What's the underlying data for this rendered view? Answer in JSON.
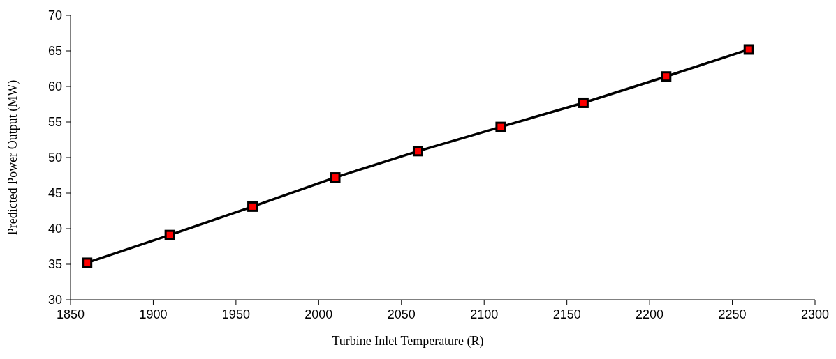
{
  "chart_data": {
    "type": "line",
    "xlabel": "Turbine Inlet Temperature (R)",
    "ylabel": "Predicted Power Output (MW)",
    "x": [
      1860,
      1910,
      1960,
      2010,
      2060,
      2110,
      2160,
      2210,
      2260
    ],
    "series": [
      {
        "color": "#000000",
        "values": [
          35.2,
          39.1,
          43.1,
          47.2,
          50.9,
          54.3,
          57.7,
          61.4,
          65.2
        ]
      }
    ],
    "marker": "square",
    "line_style": "solid",
    "grid": false,
    "xlim": [
      1850,
      2300
    ],
    "xticks": [
      1850,
      1900,
      1950,
      2000,
      2050,
      2100,
      2150,
      2200,
      2250,
      2300
    ],
    "ylim": [
      30,
      70
    ],
    "yticks": [
      30,
      35,
      40,
      45,
      50,
      55,
      60,
      65,
      70
    ]
  }
}
